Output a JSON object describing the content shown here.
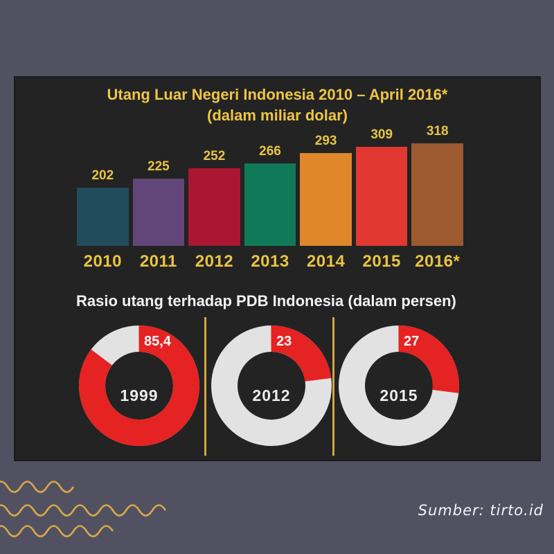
{
  "page": {
    "background_color": "#515161",
    "panel_color": "#232323",
    "accent_yellow": "#e9c440",
    "source_label": "Sumber: tirto.id"
  },
  "chart_data": [
    {
      "type": "bar",
      "title": "Utang Luar Negeri Indonesia 2010 – April 2016*",
      "subtitle": "(dalam miliar dolar)",
      "categories": [
        "2010",
        "2011",
        "2012",
        "2013",
        "2014",
        "2015",
        "2016*"
      ],
      "values": [
        202,
        225,
        252,
        266,
        293,
        309,
        318
      ],
      "bar_colors": [
        "#214c5c",
        "#634679",
        "#ab1733",
        "#107a58",
        "#e0872b",
        "#e13831",
        "#9d5930"
      ],
      "value_label_color": "#e9c440",
      "category_label_color": "#e9c440",
      "unit": "miliar dolar",
      "ylim": [
        0,
        318
      ],
      "grid": false,
      "legend": false,
      "value_labels_shown": true
    },
    {
      "type": "donut",
      "title": "Rasio utang terhadap PDB Indonesia (dalam persen)",
      "unit": "persen",
      "items": [
        {
          "label": "1999",
          "value": 85.4,
          "value_label": "85,4"
        },
        {
          "label": "2012",
          "value": 23,
          "value_label": "23"
        },
        {
          "label": "2015",
          "value": 27,
          "value_label": "27"
        }
      ],
      "filled_color": "#e52322",
      "empty_color": "#e2e2e2",
      "start": "top, clockwise",
      "legend": false
    }
  ],
  "decor": {
    "waves_color": "#d8a84a",
    "separator_color": "#d4a63c"
  }
}
